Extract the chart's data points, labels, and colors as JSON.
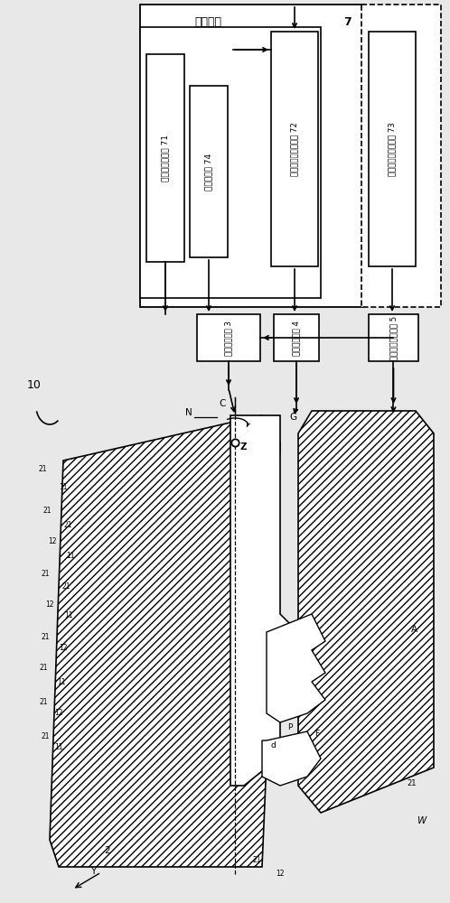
{
  "bg_color": "#e8e8e8",
  "block71_label": "相对位置控制部 71",
  "block74_label": "振动控制部 74",
  "block72_label": "磨石旋转机构控制部 72",
  "block73_label": "扬矩控制机构控制部 73",
  "block3_label": "位置调节机构 3",
  "block4_label": "磨石旋转马达 4",
  "block5_label": "旋转扬矩控制机构 5",
  "control_label": "制御机構",
  "label_7": "7"
}
